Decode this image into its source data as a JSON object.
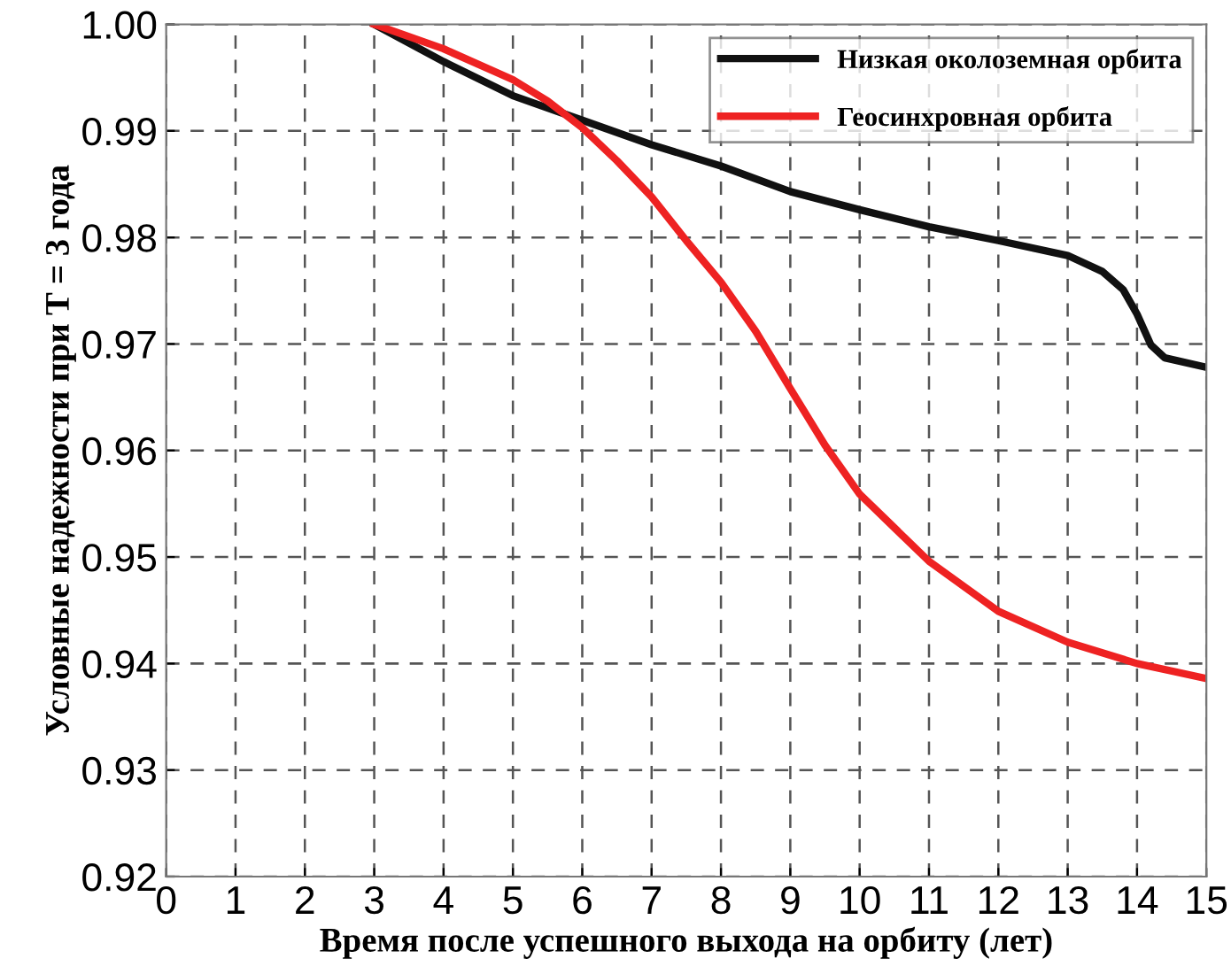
{
  "chart_data": {
    "type": "line",
    "xlabel": "Время после успешного выхода на орбиту (лет)",
    "ylabel": "Условные надежности при T = 3 года",
    "xlim": [
      0,
      15
    ],
    "xticks": [
      0,
      1,
      2,
      3,
      4,
      5,
      6,
      7,
      8,
      9,
      10,
      11,
      12,
      13,
      14,
      15
    ],
    "ylim": [
      0.92,
      1.0
    ],
    "yticks": [
      {
        "value": 0.92,
        "label": "0.92"
      },
      {
        "value": 0.93,
        "label": "0.93"
      },
      {
        "value": 0.94,
        "label": "0.94"
      },
      {
        "value": 0.95,
        "label": "0.95"
      },
      {
        "value": 0.96,
        "label": "0.96"
      },
      {
        "value": 0.97,
        "label": "0.97"
      },
      {
        "value": 0.98,
        "label": "0.98"
      },
      {
        "value": 0.99,
        "label": "0.99"
      },
      {
        "value": 1.0,
        "label": "1.00"
      }
    ],
    "grid": true,
    "legend": "top right",
    "line_style": "solid",
    "marker": "none",
    "series": [
      {
        "name": "Низкая околоземная орбита",
        "color": "#111111",
        "x": [
          3,
          4,
          5,
          6,
          7,
          8,
          9,
          10,
          11,
          12,
          13,
          13.5,
          13.8,
          14,
          14.2,
          14.4,
          15
        ],
        "values": [
          1.0,
          0.9965,
          0.9933,
          0.991,
          0.9887,
          0.9867,
          0.9843,
          0.9826,
          0.981,
          0.9797,
          0.9783,
          0.9768,
          0.9751,
          0.9728,
          0.9699,
          0.9687,
          0.9678
        ]
      },
      {
        "name": "Геосинхровная орбита",
        "color": "#ee2222",
        "x": [
          3,
          4,
          5,
          5.5,
          6,
          6.5,
          7,
          7.5,
          8,
          8.5,
          9,
          9.5,
          10,
          11,
          12,
          13,
          14,
          15
        ],
        "values": [
          1.0,
          0.9977,
          0.9948,
          0.9928,
          0.9903,
          0.9872,
          0.9838,
          0.9797,
          0.9758,
          0.9712,
          0.9658,
          0.9605,
          0.9559,
          0.9496,
          0.9449,
          0.942,
          0.94,
          0.9386
        ]
      }
    ]
  }
}
